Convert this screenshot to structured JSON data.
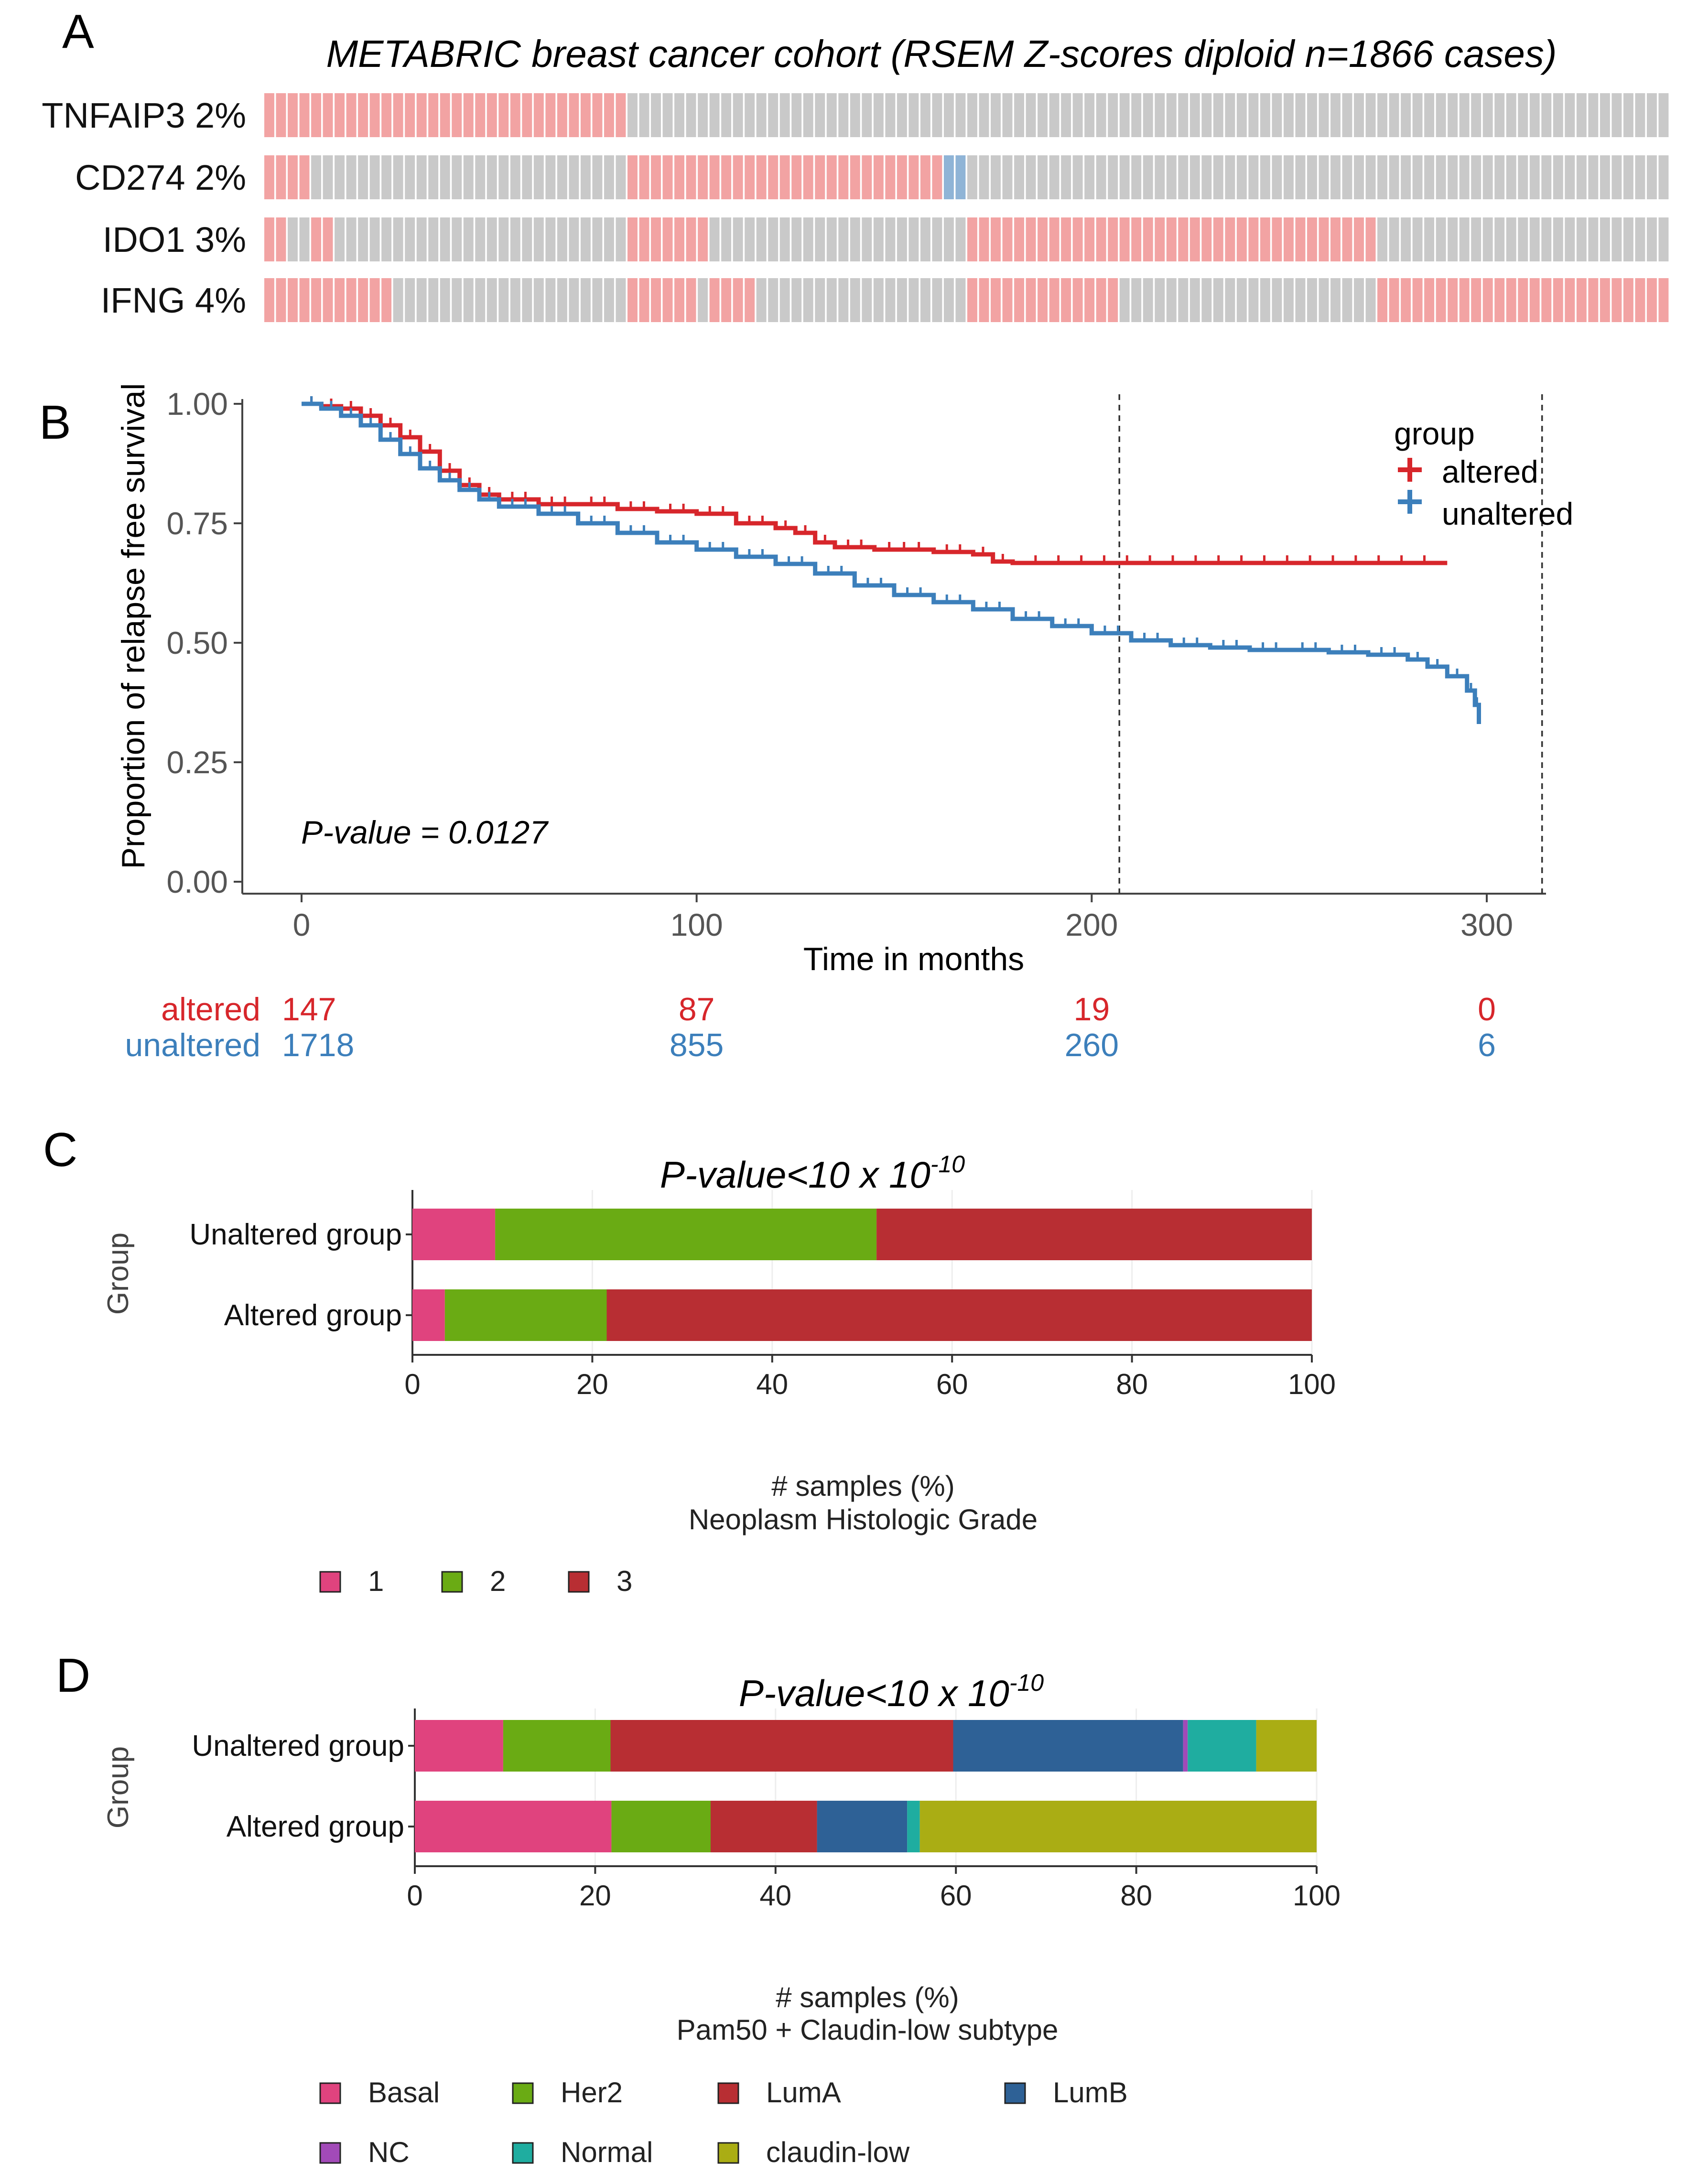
{
  "chart_data": [
    {
      "panel": "A",
      "type": "oncoprint",
      "title": "METABRIC breast cancer cohort (RSEM Z-scores diploid n=1866 cases)",
      "colors": {
        "base": "#c9c9c9",
        "up": "#f2a3a3",
        "down": "#8fb4d6"
      },
      "rows": [
        {
          "label": "TNFAIP3 2%",
          "gene": "TNFAIP3",
          "pct": "2%",
          "segments": [
            {
              "from": 0,
              "to": 0.258,
              "kind": "up"
            }
          ]
        },
        {
          "label": "CD274 2%",
          "gene": "CD274",
          "pct": "2%",
          "segments": [
            {
              "from": 0,
              "to": 0.032,
              "kind": "up"
            },
            {
              "from": 0.258,
              "to": 0.483,
              "kind": "up"
            },
            {
              "from": 0.483,
              "to": 0.497,
              "kind": "down"
            }
          ]
        },
        {
          "label": "IDO1 3%",
          "gene": "IDO1",
          "pct": "3%",
          "segments": [
            {
              "from": 0,
              "to": 0.018,
              "kind": "up"
            },
            {
              "from": 0.032,
              "to": 0.052,
              "kind": "up"
            },
            {
              "from": 0.258,
              "to": 0.318,
              "kind": "up"
            },
            {
              "from": 0.497,
              "to": 0.79,
              "kind": "up"
            }
          ]
        },
        {
          "label": "IFNG 4%",
          "gene": "IFNG",
          "pct": "4%",
          "segments": [
            {
              "from": 0,
              "to": 0.093,
              "kind": "up"
            },
            {
              "from": 0.258,
              "to": 0.305,
              "kind": "up"
            },
            {
              "from": 0.318,
              "to": 0.353,
              "kind": "up"
            },
            {
              "from": 0.497,
              "to": 0.607,
              "kind": "up"
            },
            {
              "from": 0.79,
              "to": 1.0,
              "kind": "up"
            }
          ]
        }
      ]
    },
    {
      "panel": "B",
      "type": "line",
      "subtype": "kaplan-meier",
      "ylabel": "Proportion of relapse free survival",
      "xlabel": "Time in months",
      "xlim": [
        -15,
        315
      ],
      "ylim": [
        0,
        1
      ],
      "xticks": [
        0,
        100,
        200,
        300
      ],
      "yticks": [
        0.0,
        0.25,
        0.5,
        0.75,
        1.0
      ],
      "ytick_labels": [
        "0.00",
        "0.25",
        "0.50",
        "0.75",
        "1.00"
      ],
      "vlines": [
        207,
        314
      ],
      "annotation": "P-value = 0.0127",
      "legend": {
        "title": "group",
        "position": "top-right"
      },
      "series": [
        {
          "name": "altered",
          "color": "#d7262b",
          "points": [
            [
              0,
              1.0
            ],
            [
              5,
              0.995
            ],
            [
              10,
              0.99
            ],
            [
              15,
              0.975
            ],
            [
              20,
              0.955
            ],
            [
              25,
              0.93
            ],
            [
              30,
              0.9
            ],
            [
              35,
              0.86
            ],
            [
              40,
              0.83
            ],
            [
              45,
              0.81
            ],
            [
              50,
              0.8
            ],
            [
              60,
              0.79
            ],
            [
              70,
              0.79
            ],
            [
              80,
              0.78
            ],
            [
              90,
              0.775
            ],
            [
              100,
              0.77
            ],
            [
              110,
              0.75
            ],
            [
              120,
              0.74
            ],
            [
              125,
              0.73
            ],
            [
              130,
              0.71
            ],
            [
              135,
              0.7
            ],
            [
              145,
              0.695
            ],
            [
              160,
              0.69
            ],
            [
              170,
              0.685
            ],
            [
              175,
              0.67
            ],
            [
              180,
              0.667
            ],
            [
              290,
              0.667
            ]
          ]
        },
        {
          "name": "unaltered",
          "color": "#3c7fbb",
          "points": [
            [
              0,
              1.0
            ],
            [
              5,
              0.99
            ],
            [
              10,
              0.975
            ],
            [
              15,
              0.955
            ],
            [
              20,
              0.925
            ],
            [
              25,
              0.895
            ],
            [
              30,
              0.865
            ],
            [
              35,
              0.84
            ],
            [
              40,
              0.82
            ],
            [
              45,
              0.8
            ],
            [
              50,
              0.785
            ],
            [
              60,
              0.77
            ],
            [
              70,
              0.75
            ],
            [
              80,
              0.73
            ],
            [
              90,
              0.71
            ],
            [
              100,
              0.695
            ],
            [
              110,
              0.68
            ],
            [
              120,
              0.665
            ],
            [
              130,
              0.645
            ],
            [
              140,
              0.62
            ],
            [
              150,
              0.6
            ],
            [
              160,
              0.585
            ],
            [
              170,
              0.57
            ],
            [
              180,
              0.55
            ],
            [
              190,
              0.535
            ],
            [
              200,
              0.52
            ],
            [
              210,
              0.505
            ],
            [
              220,
              0.495
            ],
            [
              230,
              0.49
            ],
            [
              240,
              0.485
            ],
            [
              250,
              0.485
            ],
            [
              260,
              0.48
            ],
            [
              270,
              0.475
            ],
            [
              280,
              0.465
            ],
            [
              285,
              0.45
            ],
            [
              290,
              0.43
            ],
            [
              295,
              0.4
            ],
            [
              297,
              0.37
            ],
            [
              298,
              0.33
            ]
          ]
        }
      ],
      "risk_table": {
        "times": [
          0,
          100,
          200,
          300
        ],
        "rows": [
          {
            "name": "altered",
            "color": "#d7262b",
            "values": [
              "147",
              "87",
              "19",
              "0"
            ]
          },
          {
            "name": "unaltered",
            "color": "#3c7fbb",
            "values": [
              "1718",
              "855",
              "260",
              "6"
            ]
          }
        ]
      }
    },
    {
      "panel": "C",
      "type": "bar",
      "orientation": "horizontal-stacked",
      "title": "P-value<10 x 10",
      "title_superscript": "-10",
      "ylabel": "Group",
      "xlabel": "# samples (%)",
      "xlabel2": "Neoplasm Histologic Grade",
      "xlim": [
        0,
        100
      ],
      "xticks": [
        0,
        20,
        40,
        60,
        80,
        100
      ],
      "categories": [
        "Unaltered group",
        "Altered group"
      ],
      "series": [
        {
          "name": "1",
          "color": "#e0437e",
          "values": [
            9.2,
            3.6
          ]
        },
        {
          "name": "2",
          "color": "#6aab14",
          "values": [
            42.4,
            18.0
          ]
        },
        {
          "name": "3",
          "color": "#b82e33",
          "values": [
            48.4,
            78.4
          ]
        }
      ]
    },
    {
      "panel": "D",
      "type": "bar",
      "orientation": "horizontal-stacked",
      "title": "P-value<10 x 10",
      "title_superscript": "-10",
      "ylabel": "Group",
      "xlabel": "# samples (%)",
      "xlabel2": "Pam50 + Claudin-low subtype",
      "xlim": [
        0,
        100
      ],
      "xticks": [
        0,
        20,
        40,
        60,
        80,
        100
      ],
      "categories": [
        "Unaltered group",
        "Altered group"
      ],
      "series": [
        {
          "name": "Basal",
          "color": "#e0437e",
          "values": [
            9.8,
            21.8
          ]
        },
        {
          "name": "Her2",
          "color": "#6aab14",
          "values": [
            11.9,
            11.0
          ]
        },
        {
          "name": "LumA",
          "color": "#b82e33",
          "values": [
            38.0,
            11.8
          ]
        },
        {
          "name": "LumB",
          "color": "#2e6196",
          "values": [
            25.5,
            10.0
          ]
        },
        {
          "name": "NC",
          "color": "#a24ab8",
          "values": [
            0.5,
            0.0
          ]
        },
        {
          "name": "Normal",
          "color": "#1fada0",
          "values": [
            7.6,
            1.4
          ]
        },
        {
          "name": "claudin-low",
          "color": "#aaad14",
          "values": [
            6.7,
            44.0
          ]
        }
      ]
    }
  ]
}
